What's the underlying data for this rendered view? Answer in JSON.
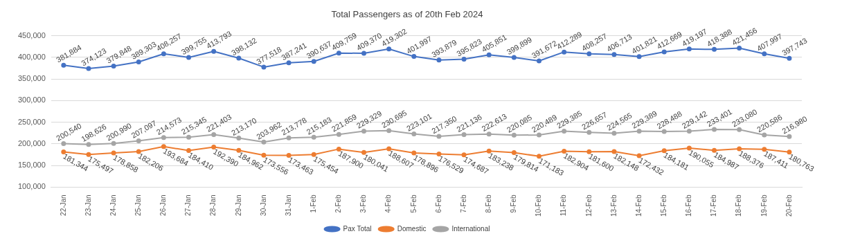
{
  "chart_data": {
    "type": "line",
    "title": "Total Passengers as of 20th Feb 2024",
    "categories": [
      "22-Jan",
      "23-Jan",
      "24-Jan",
      "25-Jan",
      "26-Jan",
      "27-Jan",
      "28-Jan",
      "29-Jan",
      "30-Jan",
      "31-Jan",
      "1-Feb",
      "2-Feb",
      "3-Feb",
      "4-Feb",
      "5-Feb",
      "6-Feb",
      "7-Feb",
      "8-Feb",
      "9-Feb",
      "10-Feb",
      "11-Feb",
      "12-Feb",
      "13-Feb",
      "14-Feb",
      "15-Feb",
      "16-Feb",
      "17-Feb",
      "18-Feb",
      "19-Feb",
      "20-Feb"
    ],
    "series": [
      {
        "name": "Pax Total",
        "color": "#4472c4",
        "values": [
          381884,
          374123,
          379848,
          389303,
          408257,
          399755,
          413793,
          398132,
          377518,
          387241,
          390637,
          409759,
          409370,
          419302,
          401997,
          393879,
          395823,
          405851,
          399899,
          391672,
          412289,
          408257,
          406713,
          401821,
          412669,
          419197,
          418388,
          421456,
          407997,
          397743
        ],
        "value_labels": [
          "381,884",
          "374,123",
          "379,848",
          "389,303",
          "408,257",
          "399,755",
          "413,793",
          "398,132",
          "377,518",
          "387,241",
          "390,637",
          "409,759",
          "409,370",
          "419,302",
          "401,997",
          "393,879",
          "395,823",
          "405,851",
          "399,899",
          "391,672",
          "412,289",
          "408,257",
          "406,713",
          "401,821",
          "412,669",
          "419,197",
          "418,388",
          "421,456",
          "407,997",
          "397,743"
        ]
      },
      {
        "name": "Domestic",
        "color": "#ed7d31",
        "values": [
          181344,
          175497,
          178858,
          182206,
          193684,
          184410,
          192390,
          184962,
          173556,
          173463,
          175454,
          187900,
          180041,
          188607,
          178896,
          176529,
          174687,
          183238,
          179814,
          171183,
          182904,
          181600,
          182148,
          172432,
          184181,
          190055,
          184987,
          188376,
          187411,
          180763
        ],
        "value_labels": [
          "181,344",
          "175,497",
          "178,858",
          "182,206",
          "193,684",
          "184,410",
          "192,390",
          "184,962",
          "173,556",
          "173,463",
          "175,454",
          "187,900",
          "180,041",
          "188,607",
          "178,896",
          "176,529",
          "174,687",
          "183,238",
          "179,814",
          "171,183",
          "182,904",
          "181,600",
          "182,148",
          "172,432",
          "184,181",
          "190,055",
          "184,987",
          "188,376",
          "187,411",
          "180,763"
        ]
      },
      {
        "name": "International",
        "color": "#a5a5a5",
        "values": [
          200540,
          198626,
          200990,
          207097,
          214573,
          215345,
          221403,
          213170,
          203962,
          213778,
          215183,
          221859,
          229329,
          230695,
          223101,
          217350,
          221136,
          222613,
          220085,
          220489,
          229385,
          226657,
          224565,
          229389,
          228488,
          229142,
          233401,
          233080,
          220586,
          216980
        ],
        "value_labels": [
          "200,540",
          "198,626",
          "200,990",
          "207,097",
          "214,573",
          "215,345",
          "221,403",
          "213,170",
          "203,962",
          "213,778",
          "215,183",
          "221,859",
          "229,329",
          "230,695",
          "223,101",
          "217,350",
          "221,136",
          "222,613",
          "220,085",
          "220,489",
          "229,385",
          "226,657",
          "224,565",
          "229,389",
          "228,488",
          "229,142",
          "233,401",
          "233,080",
          "220,586",
          "216,980"
        ]
      }
    ],
    "ylim": [
      100000,
      450000
    ],
    "yticks": [
      {
        "value": 100000,
        "label": "100,000"
      },
      {
        "value": 150000,
        "label": "150,000"
      },
      {
        "value": 200000,
        "label": "200,000"
      },
      {
        "value": 250000,
        "label": "250,000"
      },
      {
        "value": 300000,
        "label": "300,000"
      },
      {
        "value": 350000,
        "label": "350,000"
      },
      {
        "value": 400000,
        "label": "400,000"
      },
      {
        "value": 450000,
        "label": "450,000"
      }
    ],
    "grid": "y",
    "legend": "bottom",
    "marker": "circle",
    "line_style": "solid"
  }
}
